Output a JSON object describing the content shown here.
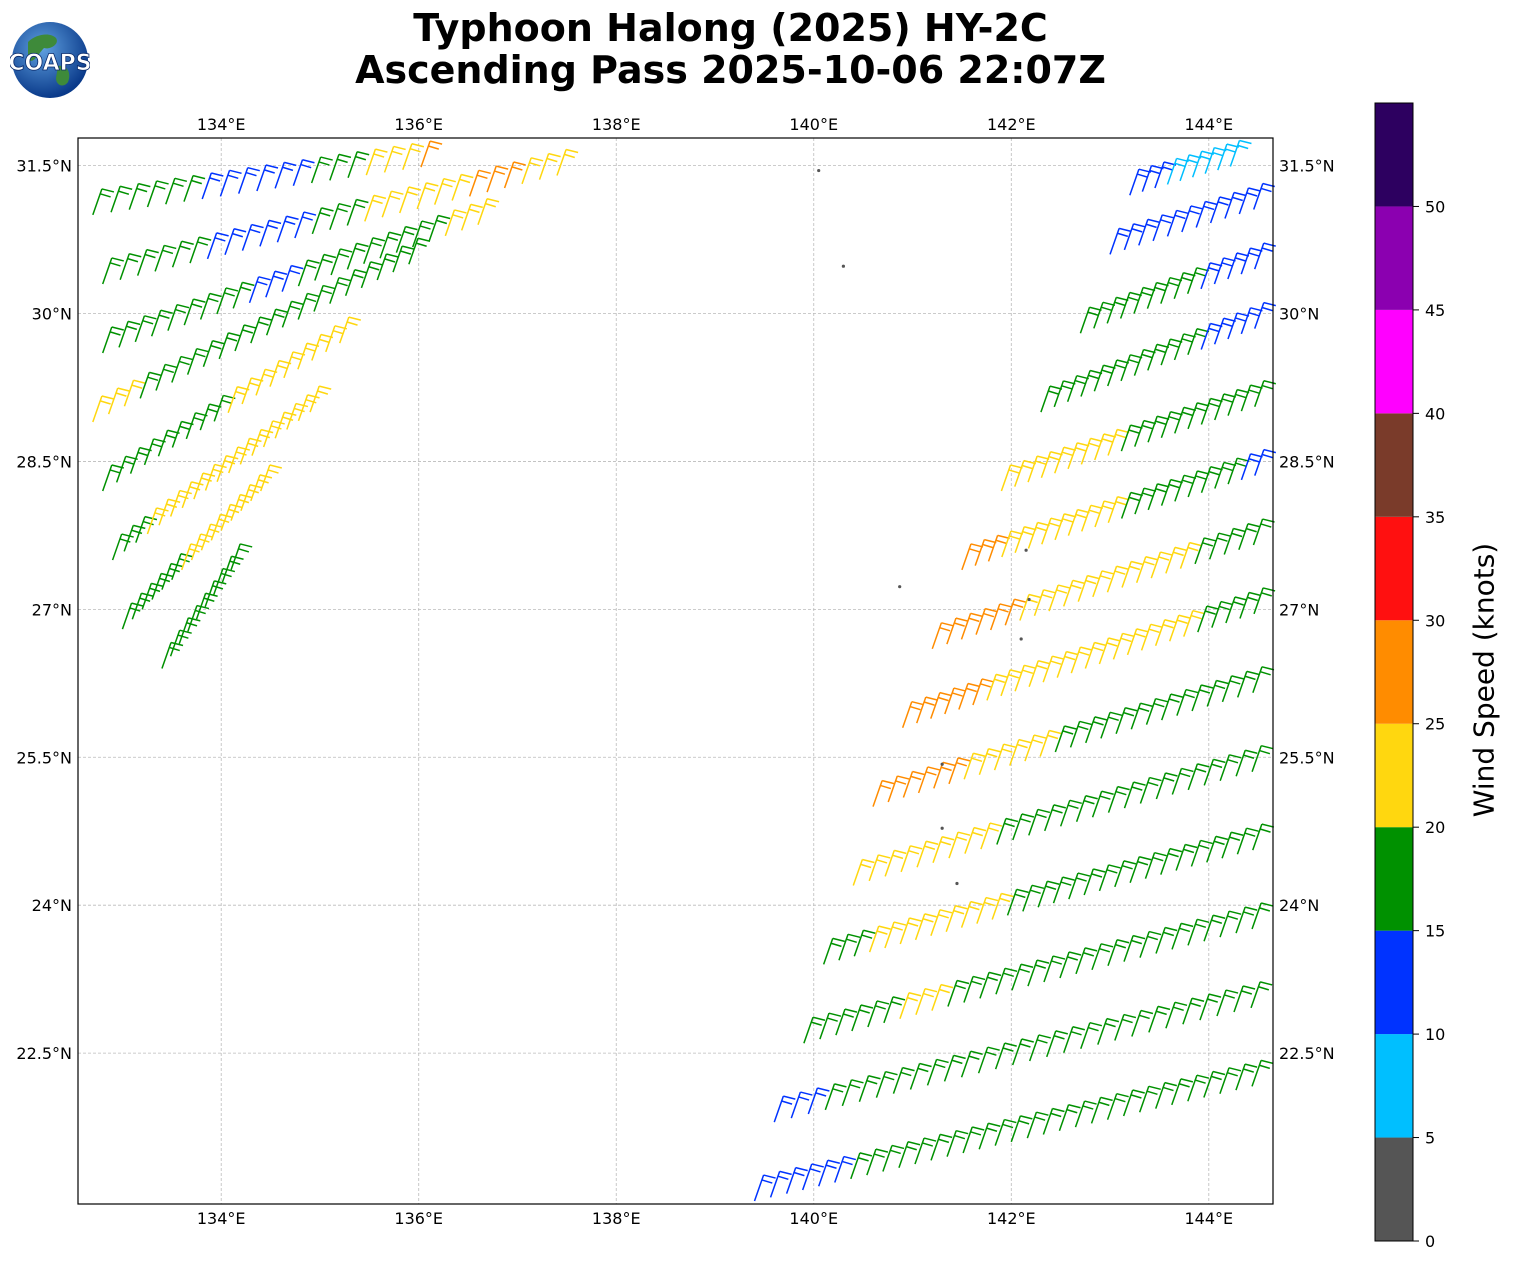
{
  "title_line1": "Typhoon Halong (2025) HY-2C",
  "title_line2": "Ascending Pass 2025-10-06 22:07Z",
  "logo_text": "COAPS",
  "map": {
    "lon_range": [
      132.55,
      144.65
    ],
    "lat_range": [
      20.97,
      31.78
    ],
    "lon_ticks": [
      "134°E",
      "136°E",
      "138°E",
      "140°E",
      "142°E",
      "144°E"
    ],
    "lon_tick_values": [
      134,
      136,
      138,
      140,
      142,
      144
    ],
    "lat_ticks": [
      "22.5°N",
      "24°N",
      "25.5°N",
      "27°N",
      "28.5°N",
      "30°N",
      "31.5°N"
    ],
    "lat_tick_values": [
      22.5,
      24,
      25.5,
      27,
      28.5,
      30,
      31.5
    ],
    "gridlines": true
  },
  "colorbar": {
    "label": "Wind Speed (knots)",
    "ticks": [
      "0",
      "5",
      "10",
      "15",
      "20",
      "25",
      "30",
      "35",
      "40",
      "45",
      "50"
    ],
    "bins": [
      {
        "min": 0,
        "max": 5,
        "color": "#555555"
      },
      {
        "min": 5,
        "max": 10,
        "color": "#00bfff"
      },
      {
        "min": 10,
        "max": 15,
        "color": "#0033ff"
      },
      {
        "min": 15,
        "max": 20,
        "color": "#009100"
      },
      {
        "min": 20,
        "max": 25,
        "color": "#ffd70f"
      },
      {
        "min": 25,
        "max": 30,
        "color": "#ff8c00"
      },
      {
        "min": 30,
        "max": 35,
        "color": "#ff1010"
      },
      {
        "min": 35,
        "max": 40,
        "color": "#7a3b2a"
      },
      {
        "min": 40,
        "max": 45,
        "color": "#ff00ff"
      },
      {
        "min": 45,
        "max": 50,
        "color": "#8b00b0"
      },
      {
        "min": 50,
        "max": 55,
        "color": "#2d0060"
      }
    ]
  },
  "swaths": [
    {
      "name": "west-swath",
      "rows": [
        {
          "start": [
            132.6,
            31.7
          ],
          "end": [
            136.4,
            31.8
          ],
          "colors": [
            "#009100",
            "#009100",
            "#009100",
            "#ffd70f",
            "#ffd70f",
            "#ffd70f",
            "#ff8c00",
            "#ff1010",
            "#ff8c00"
          ]
        },
        {
          "start": [
            132.7,
            31.0
          ],
          "end": [
            137.5,
            31.7
          ],
          "colors": [
            "#009100",
            "#009100",
            "#0033ff",
            "#0033ff",
            "#009100",
            "#ffd70f",
            "#ff8c00",
            "#ff8c00",
            "#ff8c00"
          ]
        },
        {
          "start": [
            132.8,
            30.3
          ],
          "end": [
            137.4,
            31.4
          ],
          "colors": [
            "#009100",
            "#009100",
            "#0033ff",
            "#0033ff",
            "#009100",
            "#ffd70f",
            "#ffd70f",
            "#ff8c00",
            "#ffd70f"
          ]
        },
        {
          "start": [
            132.8,
            29.6
          ],
          "end": [
            136.6,
            30.9
          ],
          "colors": [
            "#009100",
            "#009100",
            "#009100",
            "#0033ff",
            "#009100",
            "#009100",
            "#009100",
            "#ffd70f"
          ]
        },
        {
          "start": [
            132.7,
            28.9
          ],
          "end": [
            135.9,
            30.5
          ],
          "colors": [
            "#ffd70f",
            "#009100",
            "#009100",
            "#009100",
            "#009100",
            "#009100",
            "#009100"
          ]
        },
        {
          "start": [
            132.8,
            28.2
          ],
          "end": [
            135.2,
            29.7
          ],
          "colors": [
            "#009100",
            "#009100",
            "#009100",
            "#ffd70f",
            "#ffd70f",
            "#ffd70f"
          ]
        },
        {
          "start": [
            132.9,
            27.5
          ],
          "end": [
            134.9,
            29.0
          ],
          "colors": [
            "#009100",
            "#ffd70f",
            "#ffd70f",
            "#ffd70f",
            "#ffd70f",
            "#ffd70f"
          ]
        },
        {
          "start": [
            133.0,
            26.8
          ],
          "end": [
            134.4,
            28.2
          ],
          "colors": [
            "#009100",
            "#009100",
            "#ffd70f",
            "#ffd70f",
            "#ffd70f"
          ]
        },
        {
          "start": [
            133.4,
            26.4
          ],
          "end": [
            134.1,
            27.4
          ],
          "colors": [
            "#009100",
            "#009100",
            "#009100"
          ]
        }
      ]
    },
    {
      "name": "east-swath",
      "rows": [
        {
          "start": [
            143.5,
            31.6
          ],
          "end": [
            144.6,
            32.0
          ],
          "colors": [
            "#00bfff",
            "#00bfff",
            "#00bfff"
          ]
        },
        {
          "start": [
            143.2,
            31.2
          ],
          "end": [
            144.6,
            31.6
          ],
          "colors": [
            "#0033ff",
            "#00bfff",
            "#00bfff",
            "#00bfff"
          ]
        },
        {
          "start": [
            143.0,
            30.6
          ],
          "end": [
            144.6,
            31.1
          ],
          "colors": [
            "#0033ff",
            "#0033ff",
            "#0033ff",
            "#0033ff"
          ]
        },
        {
          "start": [
            142.7,
            29.8
          ],
          "end": [
            144.6,
            30.5
          ],
          "colors": [
            "#009100",
            "#009100",
            "#009100",
            "#0033ff",
            "#0033ff"
          ]
        },
        {
          "start": [
            142.3,
            29.0
          ],
          "end": [
            144.6,
            29.9
          ],
          "colors": [
            "#009100",
            "#009100",
            "#009100",
            "#009100",
            "#0033ff",
            "#0033ff"
          ]
        },
        {
          "start": [
            141.9,
            28.2
          ],
          "end": [
            144.6,
            29.1
          ],
          "colors": [
            "#ffd70f",
            "#ffd70f",
            "#ffd70f",
            "#009100",
            "#009100",
            "#009100",
            "#009100"
          ]
        },
        {
          "start": [
            141.5,
            27.4
          ],
          "end": [
            144.6,
            28.4
          ],
          "colors": [
            "#ff8c00",
            "#ffd70f",
            "#ffd70f",
            "#ffd70f",
            "#009100",
            "#009100",
            "#009100",
            "#0033ff"
          ]
        },
        {
          "start": [
            141.2,
            26.6
          ],
          "end": [
            144.6,
            27.7
          ],
          "colors": [
            "#ff8c00",
            "#ff8c00",
            "#ffd70f",
            "#ffd70f",
            "#ffd70f",
            "#ffd70f",
            "#009100",
            "#009100"
          ]
        },
        {
          "start": [
            140.9,
            25.8
          ],
          "end": [
            144.6,
            27.0
          ],
          "colors": [
            "#ff8c00",
            "#ff8c00",
            "#ffd70f",
            "#ffd70f",
            "#ffd70f",
            "#ffd70f",
            "#ffd70f",
            "#009100",
            "#009100"
          ]
        },
        {
          "start": [
            140.6,
            25.0
          ],
          "end": [
            144.6,
            26.2
          ],
          "colors": [
            "#ff8c00",
            "#ff8c00",
            "#ffd70f",
            "#ffd70f",
            "#009100",
            "#009100",
            "#009100",
            "#009100",
            "#009100"
          ]
        },
        {
          "start": [
            140.4,
            24.2
          ],
          "end": [
            144.6,
            25.4
          ],
          "colors": [
            "#ffd70f",
            "#ffd70f",
            "#ffd70f",
            "#009100",
            "#009100",
            "#009100",
            "#009100",
            "#009100",
            "#009100"
          ]
        },
        {
          "start": [
            140.1,
            23.4
          ],
          "end": [
            144.6,
            24.6
          ],
          "colors": [
            "#009100",
            "#ffd70f",
            "#ffd70f",
            "#ffd70f",
            "#009100",
            "#009100",
            "#009100",
            "#009100",
            "#009100",
            "#009100"
          ]
        },
        {
          "start": [
            139.9,
            22.6
          ],
          "end": [
            144.6,
            23.8
          ],
          "colors": [
            "#009100",
            "#009100",
            "#ffd70f",
            "#009100",
            "#009100",
            "#009100",
            "#009100",
            "#009100",
            "#009100",
            "#009100"
          ]
        },
        {
          "start": [
            139.6,
            21.8
          ],
          "end": [
            144.6,
            23.0
          ],
          "colors": [
            "#0033ff",
            "#009100",
            "#009100",
            "#009100",
            "#009100",
            "#009100",
            "#009100",
            "#009100",
            "#009100",
            "#009100"
          ]
        },
        {
          "start": [
            139.4,
            21.0
          ],
          "end": [
            144.6,
            22.2
          ],
          "colors": [
            "#0033ff",
            "#0033ff",
            "#009100",
            "#009100",
            "#009100",
            "#009100",
            "#009100",
            "#009100",
            "#009100",
            "#009100",
            "#009100"
          ]
        }
      ]
    }
  ],
  "islands": [
    [
      140.05,
      31.45
    ],
    [
      140.3,
      30.48
    ],
    [
      140.87,
      27.23
    ],
    [
      142.15,
      27.6
    ],
    [
      142.18,
      27.1
    ],
    [
      142.1,
      26.7
    ],
    [
      141.3,
      25.43
    ],
    [
      141.3,
      24.78
    ],
    [
      141.45,
      24.22
    ]
  ]
}
